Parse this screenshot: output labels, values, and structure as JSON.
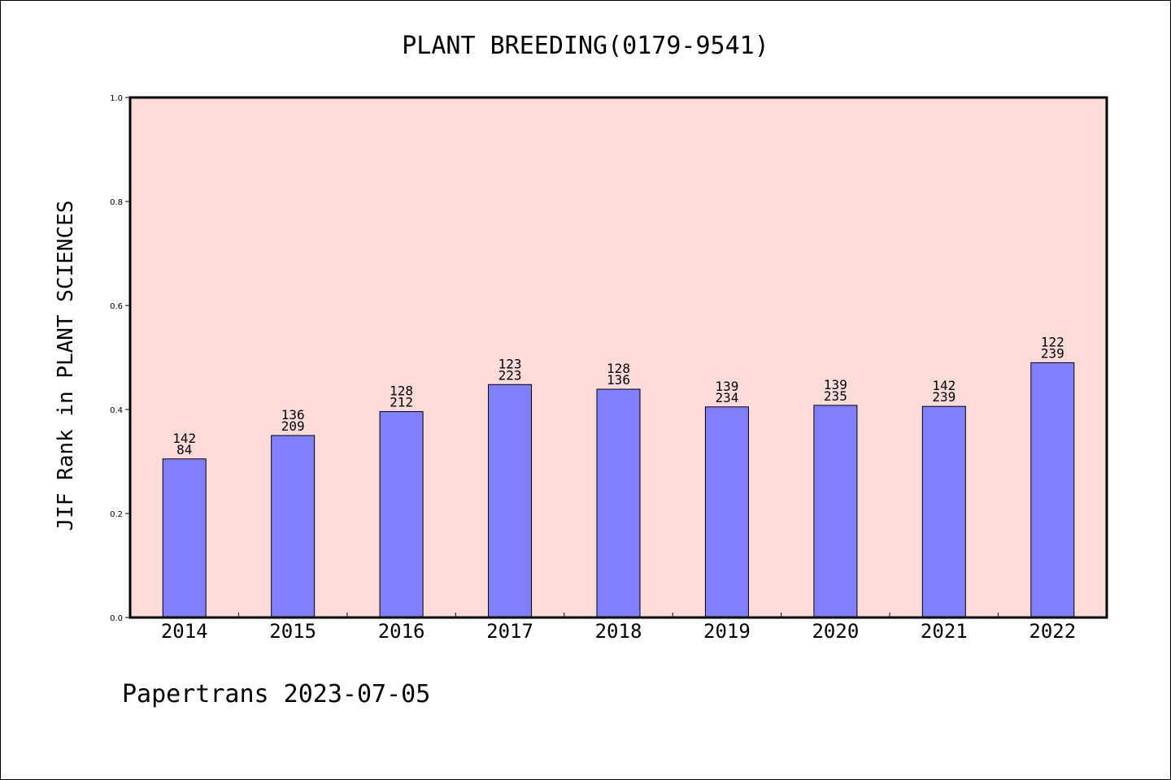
{
  "chart_data": {
    "type": "bar",
    "title": "PLANT BREEDING(0179-9541)",
    "xlabel": "",
    "ylabel": "JIF Rank in PLANT SCIENCES",
    "ylim": [
      0,
      1.0
    ],
    "yticks": [
      "0.0",
      "0.2",
      "0.4",
      "0.6",
      "0.8",
      "1.0"
    ],
    "categories": [
      "2014",
      "2015",
      "2016",
      "2017",
      "2018",
      "2019",
      "2020",
      "2021",
      "2022"
    ],
    "values": [
      0.305,
      0.35,
      0.396,
      0.448,
      0.439,
      0.405,
      0.408,
      0.406,
      0.49
    ],
    "labels_top": [
      "142",
      "136",
      "128",
      "123",
      "128",
      "139",
      "139",
      "142",
      "122"
    ],
    "labels_bottom": [
      "84",
      "209",
      "212",
      "223",
      "136",
      "234",
      "235",
      "239",
      "239"
    ],
    "grid": false,
    "colors": {
      "bar": "#8080ff",
      "plot_background": "#fddbd8"
    }
  },
  "footer": {
    "text": "Papertrans 2023-07-05"
  }
}
